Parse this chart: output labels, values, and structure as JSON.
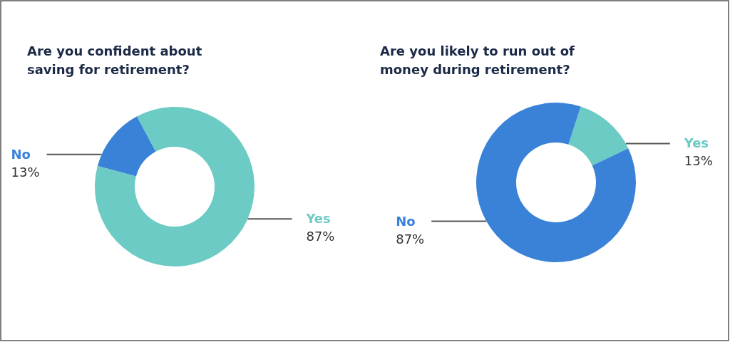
{
  "chart_data": [
    {
      "type": "donut",
      "title": "Are you confident about saving for retirement?",
      "categories": [
        "No",
        "Yes"
      ],
      "values": [
        13,
        87
      ],
      "value_labels": [
        "13%",
        "87%"
      ],
      "colors": [
        "#3a82d8",
        "#6ccbc4"
      ]
    },
    {
      "type": "donut",
      "title": "Are you likely to run out of money during retirement?",
      "categories": [
        "Yes",
        "No"
      ],
      "values": [
        13,
        87
      ],
      "value_labels": [
        "13%",
        "87%"
      ],
      "colors": [
        "#6ccbc4",
        "#3a82d8"
      ]
    }
  ]
}
